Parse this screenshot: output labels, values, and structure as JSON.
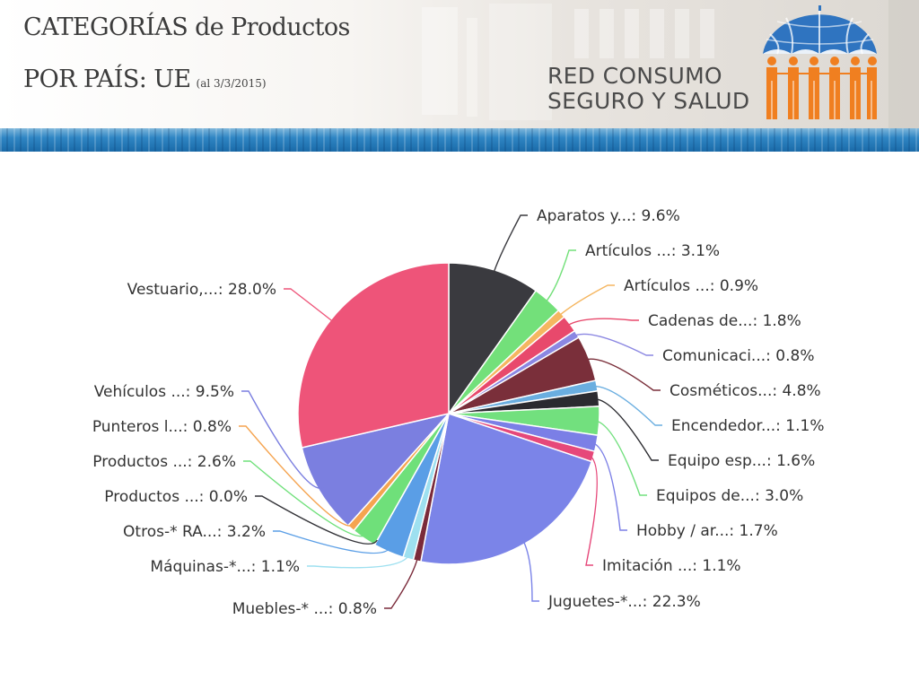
{
  "header": {
    "title_line1": "CATEGORÍAS de Productos",
    "title_line2": "POR PAÍS: UE",
    "title_date": "(al 3/3/2015)",
    "org_line1": "RED CONSUMO",
    "org_line2": "SEGURO Y SALUD"
  },
  "colors": {
    "brand_blue": "#2f74c0",
    "brand_orange": "#f07f20",
    "stripe_blue": "#2f86c4"
  },
  "chart_data": {
    "type": "pie",
    "slices": [
      {
        "label": "Aparatos y...: 9.6%",
        "value": 9.6,
        "color": "#3a3a3f"
      },
      {
        "label": "Artículos ...: 3.1%",
        "value": 3.1,
        "color": "#73e07a"
      },
      {
        "label": "Artículos ...: 0.9%",
        "value": 0.9,
        "color": "#f5b660"
      },
      {
        "label": "Cadenas de...: 1.8%",
        "value": 1.8,
        "color": "#e8496c"
      },
      {
        "label": "Comunicaci...: 0.8%",
        "value": 0.8,
        "color": "#8b87e2"
      },
      {
        "label": "Cosméticos...: 4.8%",
        "value": 4.8,
        "color": "#7a2f3a"
      },
      {
        "label": "Encendedor...: 1.1%",
        "value": 1.1,
        "color": "#6aaee0"
      },
      {
        "label": "Equipo esp...: 1.6%",
        "value": 1.6,
        "color": "#2b2b30"
      },
      {
        "label": "Equipos de...: 3.0%",
        "value": 3.0,
        "color": "#72e07e"
      },
      {
        "label": "Hobby / ar...: 1.7%",
        "value": 1.7,
        "color": "#7b7fe6"
      },
      {
        "label": "Imitación ...: 1.1%",
        "value": 1.1,
        "color": "#e6487a"
      },
      {
        "label": "Juguetes-*...: 22.3%",
        "value": 22.3,
        "color": "#7b84e8"
      },
      {
        "label": "Muebles-* ...: 0.8%",
        "value": 0.8,
        "color": "#7a2a3a"
      },
      {
        "label": "Máquinas-*...: 1.1%",
        "value": 1.1,
        "color": "#9ee0f0"
      },
      {
        "label": "Otros-* RA...: 3.2%",
        "value": 3.2,
        "color": "#5a9ee6"
      },
      {
        "label": "Productos ...: 0.0%",
        "value": 0.0,
        "color": "#333338"
      },
      {
        "label": "Productos ...: 2.6%",
        "value": 2.6,
        "color": "#6fe07a"
      },
      {
        "label": "Punteros l...: 0.8%",
        "value": 0.8,
        "color": "#f5a450"
      },
      {
        "label": "Vehículos ...: 9.5%",
        "value": 9.5,
        "color": "#7b7fe0"
      },
      {
        "label": "Vestuario,...: 28.0%",
        "value": 28.0,
        "color": "#ee5479"
      }
    ]
  }
}
